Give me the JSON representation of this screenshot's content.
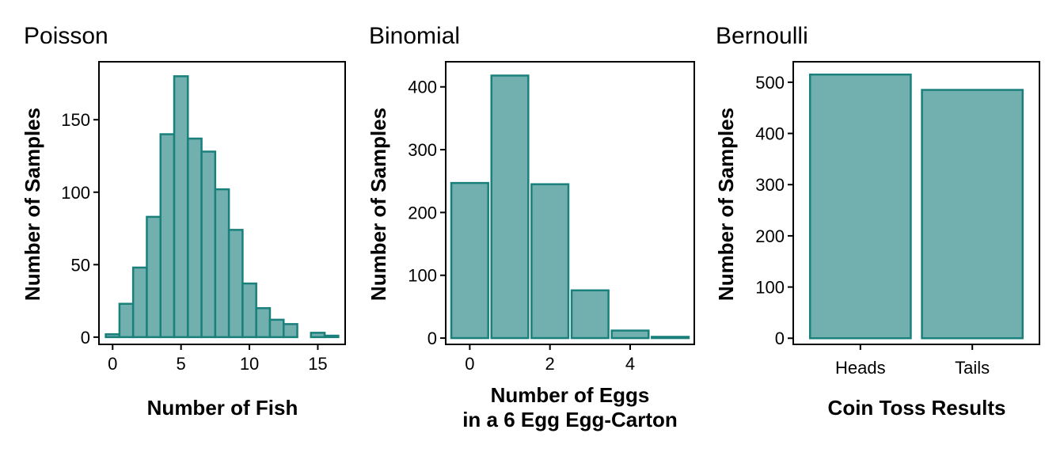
{
  "colors": {
    "bar_fill": "#72b0b0",
    "bar_stroke": "#1a807c",
    "axis": "#000000",
    "background": "#ffffff"
  },
  "chart_data": [
    {
      "type": "bar",
      "title": "Poisson",
      "xlabel": "Number of Fish",
      "ylabel": "Number of Samples",
      "xlim": [
        -1,
        17
      ],
      "ylim": [
        -5,
        190
      ],
      "xticks": [
        0,
        5,
        10,
        15
      ],
      "yticks": [
        0,
        50,
        100,
        150
      ],
      "bin_width": 1,
      "x": [
        0,
        1,
        2,
        3,
        4,
        5,
        6,
        7,
        8,
        9,
        10,
        11,
        12,
        13,
        15,
        16
      ],
      "values": [
        2,
        23,
        48,
        83,
        140,
        180,
        137,
        128,
        102,
        74,
        37,
        20,
        12,
        9,
        3,
        1
      ],
      "grid": false
    },
    {
      "type": "bar",
      "title": "Binomial",
      "xlabel": "Number of Eggs\nin a 6 Egg Egg-Carton",
      "ylabel": "Number of Samples",
      "xlim": [
        -0.6,
        5.6
      ],
      "ylim": [
        -10,
        440
      ],
      "xticks": [
        0,
        2,
        4
      ],
      "yticks": [
        0,
        100,
        200,
        300,
        400
      ],
      "bin_width": 0.92,
      "x": [
        0,
        1,
        2,
        3,
        4,
        5
      ],
      "values": [
        247,
        418,
        245,
        76,
        12,
        2
      ],
      "grid": false
    },
    {
      "type": "bar",
      "title": "Bernoulli",
      "xlabel": "Coin Toss Results",
      "ylabel": "Number of Samples",
      "categories": [
        "Heads",
        "Tails"
      ],
      "values": [
        515,
        485
      ],
      "ylim": [
        -12,
        540
      ],
      "yticks": [
        0,
        100,
        200,
        300,
        400,
        500
      ],
      "grid": false
    }
  ]
}
